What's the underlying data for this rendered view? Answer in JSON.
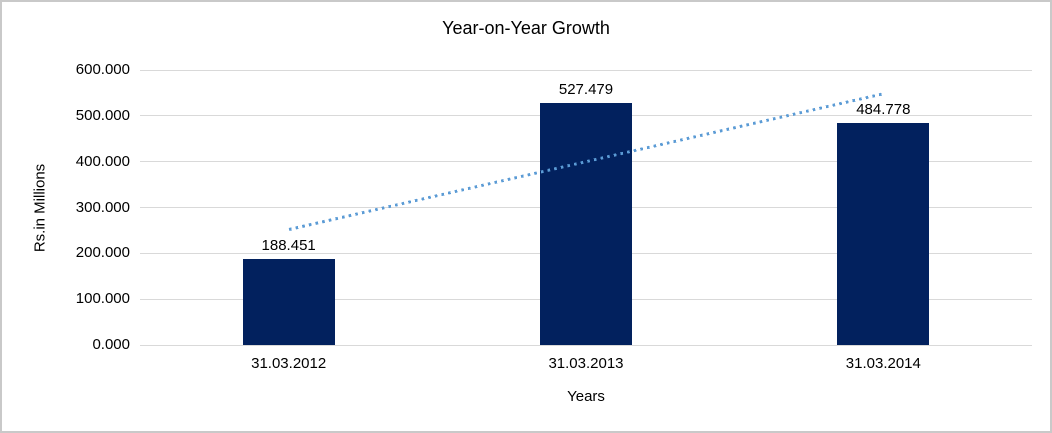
{
  "chart_data": {
    "type": "bar",
    "title": "Year-on-Year Growth",
    "xlabel": "Years",
    "ylabel": "Rs.in Millions",
    "categories": [
      "31.03.2012",
      "31.03.2013",
      "31.03.2014"
    ],
    "values": [
      188.451,
      527.479,
      484.778
    ],
    "data_labels": [
      "188.451",
      "527.479",
      "484.778"
    ],
    "ylim": [
      0,
      600
    ],
    "ytick_step": 100,
    "ytick_labels": [
      "0.000",
      "100.000",
      "200.000",
      "300.000",
      "400.000",
      "500.000",
      "600.000"
    ],
    "grid": true,
    "legend_position": "none",
    "bar_color": "#02215E",
    "trendline": {
      "type": "linear",
      "style": "dotted",
      "color": "#5B9BD5",
      "start_value": 252.1,
      "end_value": 548.4
    }
  },
  "colors": {
    "gridline": "#D9D9D9",
    "frame_border": "#C9C9C9",
    "background": "#FFFFFF",
    "text": "#000000"
  }
}
